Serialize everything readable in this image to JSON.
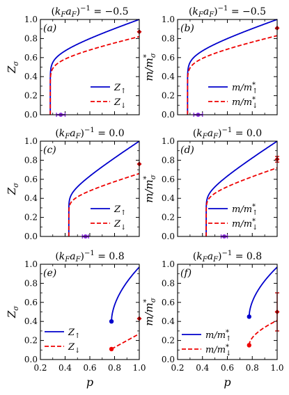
{
  "chart_data": [
    {
      "panel": "a",
      "type": "line",
      "title_pre": "(",
      "title_k": "k",
      "title_ksub": "F",
      "title_a": "a",
      "title_asub": "F",
      "title_mid": ")",
      "title_exp": "−1",
      "title_val": " = −0.5",
      "ylabel": "Z",
      "ylabel_sub": "σ",
      "xlim": [
        0.2,
        1.0
      ],
      "ylim": [
        0.0,
        1.0
      ],
      "xticks": [
        "0.2",
        "0.4",
        "0.6",
        "0.8",
        "1.0"
      ],
      "yticks": [
        "0.0",
        "0.2",
        "0.4",
        "0.6",
        "0.8",
        "1.0"
      ],
      "series": [
        {
          "name": "Z↑",
          "legend_main": "Z",
          "legend_sub": "↑",
          "color": "#0000cc",
          "style": "solid",
          "pc": 0.28,
          "y1": 1.0,
          "plateau_frac": 0.72
        },
        {
          "name": "Z↓",
          "legend_main": "Z",
          "legend_sub": "↓",
          "color": "#ee0000",
          "style": "dashed",
          "pc": 0.28,
          "y1": 0.82,
          "plateau_frac": 0.78
        }
      ],
      "endpoint": {
        "x": 1.0,
        "y": 0.87,
        "color": "#cc0000"
      },
      "interval": {
        "x1": 0.33,
        "x2": 0.4,
        "color": "#8a2be2"
      }
    },
    {
      "panel": "b",
      "type": "line",
      "title_pre": "(",
      "title_k": "k",
      "title_ksub": "F",
      "title_a": "a",
      "title_asub": "F",
      "title_mid": ")",
      "title_exp": "−1",
      "title_val": " = −0.5",
      "ylabel": "m/m",
      "ylabel_sub": "σ",
      "ylabel_sup": "*",
      "xlim": [
        0.2,
        1.0
      ],
      "ylim": [
        0.0,
        1.0
      ],
      "xticks": [
        "0.2",
        "0.4",
        "0.6",
        "0.8",
        "1.0"
      ],
      "yticks": [
        "0.0",
        "0.2",
        "0.4",
        "0.6",
        "0.8",
        "1.0"
      ],
      "series": [
        {
          "name": "m/m*↑",
          "legend_main": "m/m",
          "legend_sub": "↑",
          "legend_sup": "*",
          "color": "#0000cc",
          "style": "solid",
          "pc": 0.28,
          "y1": 1.0,
          "plateau_frac": 0.72
        },
        {
          "name": "m/m*↓",
          "legend_main": "m/m",
          "legend_sub": "↓",
          "legend_sup": "*",
          "color": "#ee0000",
          "style": "dashed",
          "pc": 0.28,
          "y1": 0.83,
          "plateau_frac": 0.78
        }
      ],
      "endpoint": {
        "x": 1.0,
        "y": 0.91,
        "color": "#cc0000"
      },
      "interval": {
        "x1": 0.33,
        "x2": 0.4,
        "color": "#8a2be2"
      }
    },
    {
      "panel": "c",
      "type": "line",
      "title_pre": "(",
      "title_k": "k",
      "title_ksub": "F",
      "title_a": "a",
      "title_asub": "F",
      "title_mid": ")",
      "title_exp": "−1",
      "title_val": " = 0.0",
      "ylabel": "Z",
      "ylabel_sub": "σ",
      "xlim": [
        0.2,
        1.0
      ],
      "ylim": [
        0.0,
        1.0
      ],
      "xticks": [
        "0.2",
        "0.4",
        "0.6",
        "0.8",
        "1.0"
      ],
      "yticks": [
        "0.0",
        "0.2",
        "0.4",
        "0.6",
        "0.8",
        "1.0"
      ],
      "series": [
        {
          "name": "Z↑",
          "legend_main": "Z",
          "legend_sub": "↑",
          "color": "#0000cc",
          "style": "solid",
          "pc": 0.43,
          "y1": 1.0,
          "plateau_frac": 0.55
        },
        {
          "name": "Z↓",
          "legend_main": "Z",
          "legend_sub": "↓",
          "color": "#ee0000",
          "style": "dashed",
          "pc": 0.43,
          "y1": 0.66,
          "plateau_frac": 0.7
        }
      ],
      "endpoint": {
        "x": 1.0,
        "y": 0.76,
        "color": "#cc0000"
      },
      "interval": {
        "x1": 0.54,
        "x2": 0.59,
        "color": "#8a2be2"
      }
    },
    {
      "panel": "d",
      "type": "line",
      "title_pre": "(",
      "title_k": "k",
      "title_ksub": "F",
      "title_a": "a",
      "title_asub": "F",
      "title_mid": ")",
      "title_exp": "−1",
      "title_val": " = 0.0",
      "ylabel": "m/m",
      "ylabel_sub": "σ",
      "ylabel_sup": "*",
      "xlim": [
        0.2,
        1.0
      ],
      "ylim": [
        0.0,
        1.0
      ],
      "xticks": [
        "0.2",
        "0.4",
        "0.6",
        "0.8",
        "1.0"
      ],
      "yticks": [
        "0.0",
        "0.2",
        "0.4",
        "0.6",
        "0.8",
        "1.0"
      ],
      "series": [
        {
          "name": "m/m*↑",
          "legend_main": "m/m",
          "legend_sub": "↑",
          "legend_sup": "*",
          "color": "#0000cc",
          "style": "solid",
          "pc": 0.43,
          "y1": 1.0,
          "plateau_frac": 0.55
        },
        {
          "name": "m/m*↓",
          "legend_main": "m/m",
          "legend_sub": "↓",
          "legend_sup": "*",
          "color": "#ee0000",
          "style": "dashed",
          "pc": 0.43,
          "y1": 0.72,
          "plateau_frac": 0.7
        }
      ],
      "endpoint": {
        "x": 1.0,
        "y": 0.81,
        "color": "#cc0000",
        "err": 0.03
      },
      "interval": {
        "x1": 0.55,
        "x2": 0.6,
        "color": "#8a2be2"
      }
    },
    {
      "panel": "e",
      "type": "line",
      "title_pre": "(",
      "title_k": "k",
      "title_ksub": "F",
      "title_a": "a",
      "title_asub": "F",
      "title_mid": ")",
      "title_exp": "−1",
      "title_val": " = 0.8",
      "ylabel": "Z",
      "ylabel_sub": "σ",
      "xlabel": "p",
      "xlim": [
        0.2,
        1.0
      ],
      "ylim": [
        0.0,
        1.0
      ],
      "xticks": [
        "0.2",
        "0.4",
        "0.6",
        "0.8",
        "1.0"
      ],
      "yticks": [
        "0.0",
        "0.2",
        "0.4",
        "0.6",
        "0.8",
        "1.0"
      ],
      "series": [
        {
          "name": "Z↑",
          "legend_main": "Z",
          "legend_sub": "↑",
          "color": "#0000cc",
          "style": "solid",
          "start": [
            0.775,
            0.4
          ],
          "y1": 0.97,
          "shape": "sqrt"
        },
        {
          "name": "Z↓",
          "legend_main": "Z",
          "legend_sub": "↓",
          "color": "#ee0000",
          "style": "dashed",
          "start": [
            0.775,
            0.11
          ],
          "y1": 0.27,
          "shape": "lin"
        }
      ],
      "endpoint": {
        "x": 1.0,
        "y": 0.43,
        "color": "#cc0000"
      }
    },
    {
      "panel": "f",
      "type": "line",
      "title_pre": "(",
      "title_k": "k",
      "title_ksub": "F",
      "title_a": "a",
      "title_asub": "F",
      "title_mid": ")",
      "title_exp": "−1",
      "title_val": " = 0.8",
      "ylabel": "m/m",
      "ylabel_sub": "σ",
      "ylabel_sup": "*",
      "xlabel": "p",
      "xlim": [
        0.2,
        1.0
      ],
      "ylim": [
        0.0,
        1.0
      ],
      "xticks": [
        "0.2",
        "0.4",
        "0.6",
        "0.8",
        "1.0"
      ],
      "yticks": [
        "0.0",
        "0.2",
        "0.4",
        "0.6",
        "0.8",
        "1.0"
      ],
      "series": [
        {
          "name": "m/m*↑",
          "legend_main": "m/m",
          "legend_sub": "↑",
          "legend_sup": "*",
          "color": "#0000cc",
          "style": "solid",
          "start": [
            0.775,
            0.45
          ],
          "y1": 0.97,
          "shape": "sqrt"
        },
        {
          "name": "m/m*↓",
          "legend_main": "m/m",
          "legend_sub": "↓",
          "legend_sup": "*",
          "color": "#ee0000",
          "style": "dashed",
          "start": [
            0.775,
            0.15
          ],
          "y1": 0.41,
          "shape": "sqrt"
        }
      ],
      "endpoint": {
        "x": 1.0,
        "y": 0.5,
        "color": "#cc0000",
        "err": 0.2
      }
    }
  ]
}
